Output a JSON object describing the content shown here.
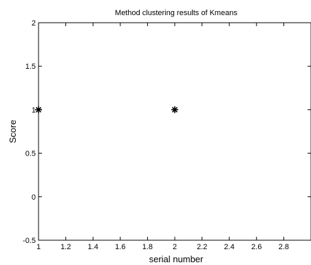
{
  "chart_data": {
    "type": "scatter",
    "title": "Method clustering results of Kmeans",
    "xlabel": "serial number",
    "ylabel": "Score",
    "xlim": [
      1,
      3
    ],
    "ylim": [
      -0.5,
      2
    ],
    "xticks": [
      1,
      1.2,
      1.4,
      1.6,
      1.8,
      2,
      2.2,
      2.4,
      2.6,
      2.8
    ],
    "xtick_labels": [
      "1",
      "1.2",
      "1.4",
      "1.6",
      "1.8",
      "2",
      "2.2",
      "2.4",
      "2.6",
      "2.8"
    ],
    "yticks": [
      -0.5,
      0,
      0.5,
      1,
      1.5,
      2
    ],
    "ytick_labels": [
      "-0.5",
      "0",
      "0.5",
      "1",
      "1.5",
      "2"
    ],
    "grid": false,
    "marker": "*",
    "marker_color": "#000000",
    "series": [
      {
        "x": [
          1,
          2
        ],
        "y": [
          1,
          1
        ]
      }
    ]
  }
}
